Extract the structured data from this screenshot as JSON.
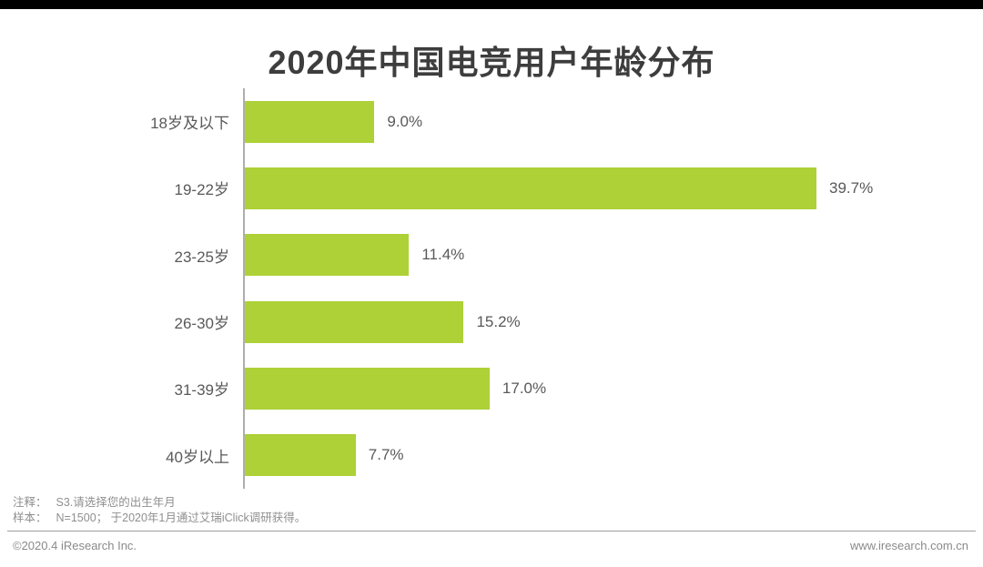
{
  "page": {
    "title": "2020年中国电竞用户年龄分布"
  },
  "chart_data": {
    "type": "bar",
    "orientation": "horizontal",
    "title": "2020年中国电竞用户年龄分布",
    "categories": [
      "18岁及以下",
      "19-22岁",
      "23-25岁",
      "26-30岁",
      "31-39岁",
      "40岁以上"
    ],
    "values": [
      9.0,
      39.7,
      11.4,
      15.2,
      17.0,
      7.7
    ],
    "value_labels": [
      "9.0%",
      "39.7%",
      "11.4%",
      "15.2%",
      "17.0%",
      "7.7%"
    ],
    "unit": "%",
    "xlim": [
      0,
      42.5
    ],
    "grid": false,
    "legend": false,
    "bar_color": "#add136"
  },
  "footer": {
    "note1_label": "注释：",
    "note1_text": "S3.请选择您的出生年月",
    "note2_label": "样本：",
    "note2_text": "N=1500； 于2020年1月通过艾瑞iClick调研获得。",
    "copyright": "©2020.4 iResearch Inc.",
    "website": "www.iresearch.com.cn"
  },
  "colors": {
    "bar": "#add136",
    "title_text": "#3d3d3d",
    "label_text": "#595959",
    "note_text": "#8f8f8f",
    "axis_line": "#aeaeae",
    "top_bar": "#000000"
  }
}
